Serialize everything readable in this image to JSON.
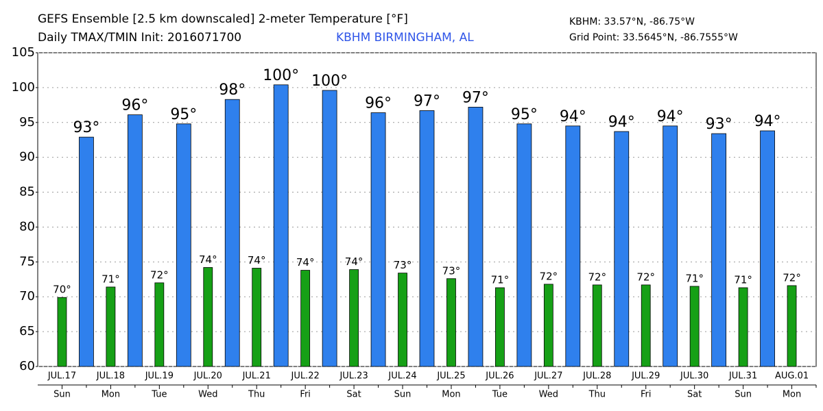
{
  "chart_data": {
    "type": "bar",
    "title": "GEFS Ensemble [2.5 km downscaled] 2-meter Temperature [°F]",
    "subtitle": "Daily TMAX/TMIN Init: 2016071700",
    "location": "KBHM BIRMINGHAM, AL",
    "station_coords": "KBHM: 33.57°N, -86.75°W",
    "grid_point": "Grid Point: 33.5645°N, -86.7555°W",
    "categories": [
      "JUL.17",
      "JUL.18",
      "JUL.19",
      "JUL.20",
      "JUL.21",
      "JUL.22",
      "JUL.23",
      "JUL.24",
      "JUL.25",
      "JUL.26",
      "JUL.27",
      "JUL.28",
      "JUL.29",
      "JUL.30",
      "JUL.31",
      "AUG.01"
    ],
    "weekdays": [
      "Sun",
      "Mon",
      "Tue",
      "Wed",
      "Thu",
      "Fri",
      "Sat",
      "Sun",
      "Mon",
      "Tue",
      "Wed",
      "Thu",
      "Fri",
      "Sat",
      "Sun",
      "Mon"
    ],
    "series": [
      {
        "color": "#2f80ed",
        "values": [
          92.9,
          96.1,
          94.8,
          98.3,
          100.4,
          99.6,
          96.4,
          96.7,
          97.2,
          94.8,
          94.5,
          93.7,
          94.5,
          93.4,
          93.8,
          null
        ],
        "value_labels": [
          "93°",
          "96°",
          "95°",
          "98°",
          "100°",
          "100°",
          "96°",
          "97°",
          "97°",
          "95°",
          "94°",
          "94°",
          "94°",
          "93°",
          "94°",
          null
        ]
      },
      {
        "color": "#16a016",
        "values": [
          69.9,
          71.4,
          72.0,
          74.2,
          74.1,
          73.8,
          73.9,
          73.4,
          72.6,
          71.3,
          71.8,
          71.7,
          71.7,
          71.5,
          71.3,
          71.6
        ],
        "value_labels": [
          "70°",
          "71°",
          "72°",
          "74°",
          "74°",
          "74°",
          "74°",
          "73°",
          "73°",
          "71°",
          "72°",
          "72°",
          "72°",
          "71°",
          "71°",
          "72°"
        ]
      }
    ],
    "ylim": [
      60,
      105
    ],
    "yticks": [
      60,
      65,
      70,
      75,
      80,
      85,
      90,
      95,
      100,
      105
    ],
    "grid": true
  }
}
